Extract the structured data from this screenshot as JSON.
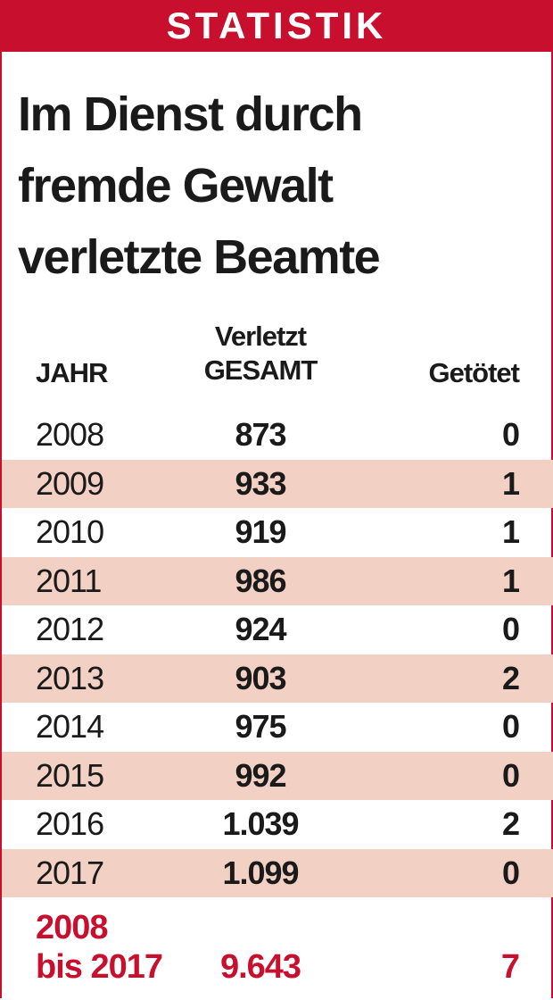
{
  "header": {
    "label": "STATISTIK"
  },
  "title": {
    "lines": [
      "Im Dienst durch",
      "fremde Gewalt",
      "verletzte Beamte"
    ]
  },
  "table": {
    "columns": [
      [
        "JAHR"
      ],
      [
        "Verletzt",
        "GESAMT"
      ],
      [
        "Getötet"
      ]
    ],
    "rows": [
      [
        "2008",
        "873",
        "0"
      ],
      [
        "2009",
        "933",
        "1"
      ],
      [
        "2010",
        "919",
        "1"
      ],
      [
        "2011",
        "986",
        "1"
      ],
      [
        "2012",
        "924",
        "0"
      ],
      [
        "2013",
        "903",
        "2"
      ],
      [
        "2014",
        "975",
        "0"
      ],
      [
        "2015",
        "992",
        "0"
      ],
      [
        "2016",
        "1.039",
        "2"
      ],
      [
        "2017",
        "1.099",
        "0"
      ]
    ],
    "total": [
      [
        "2008",
        "bis 2017"
      ],
      "9.643",
      "7"
    ]
  }
}
